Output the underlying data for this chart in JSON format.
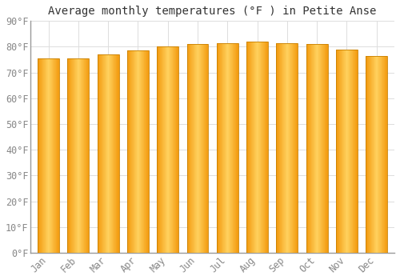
{
  "title": "Average monthly temperatures (°F ) in Petite Anse",
  "months": [
    "Jan",
    "Feb",
    "Mar",
    "Apr",
    "May",
    "Jun",
    "Jul",
    "Aug",
    "Sep",
    "Oct",
    "Nov",
    "Dec"
  ],
  "values": [
    75.5,
    75.5,
    77.0,
    78.5,
    80.0,
    81.0,
    81.5,
    82.0,
    81.5,
    81.0,
    79.0,
    76.5
  ],
  "bar_color_center": "#FFD060",
  "bar_color_edge": "#F0A000",
  "bar_edge_color": "#C88000",
  "ylim": [
    0,
    90
  ],
  "yticks": [
    0,
    10,
    20,
    30,
    40,
    50,
    60,
    70,
    80,
    90
  ],
  "ytick_labels": [
    "0°F",
    "10°F",
    "20°F",
    "30°F",
    "40°F",
    "50°F",
    "60°F",
    "70°F",
    "80°F",
    "90°F"
  ],
  "background_color": "#FFFFFF",
  "plot_bg_color": "#FFFFFF",
  "grid_color": "#DDDDDD",
  "title_fontsize": 10,
  "tick_fontsize": 8.5,
  "tick_color": "#888888",
  "spine_color": "#999999"
}
